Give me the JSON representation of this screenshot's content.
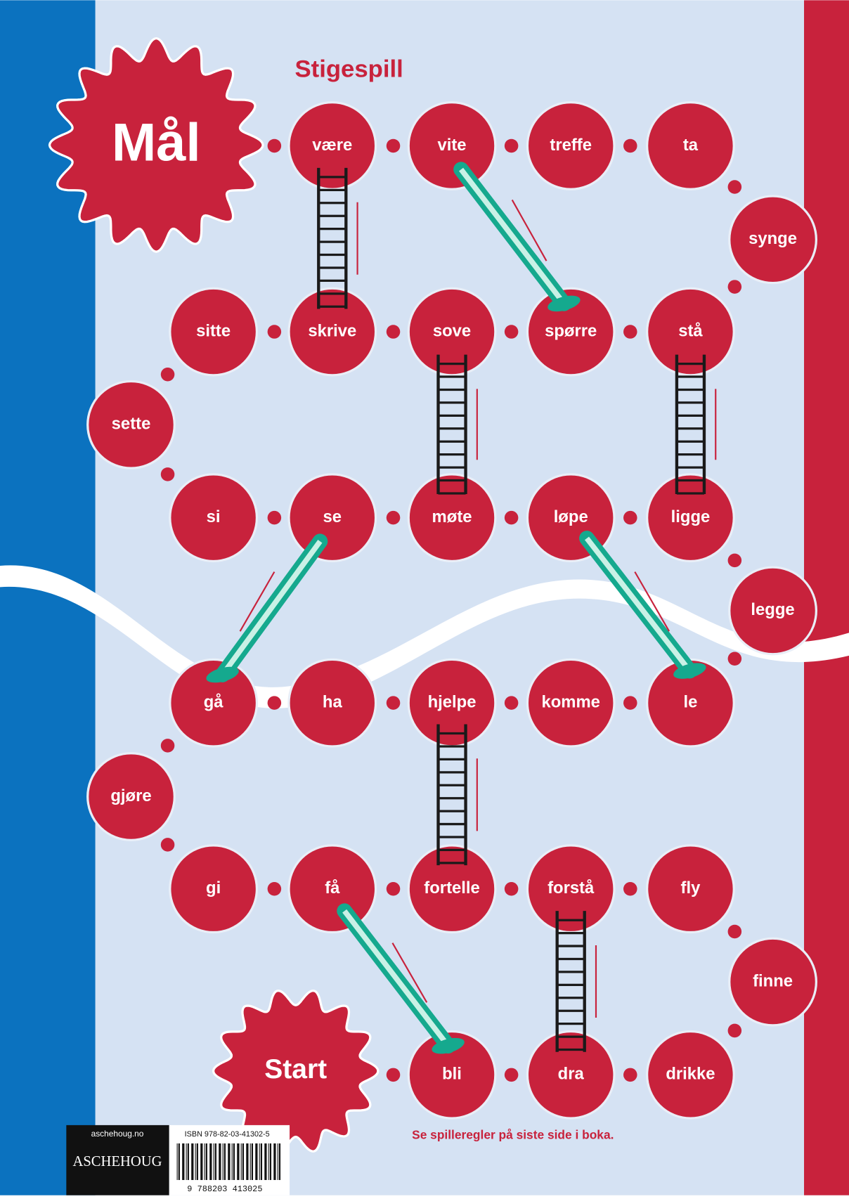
{
  "title": "Stigespill",
  "goal": "Mål",
  "start": "Start",
  "cells": [
    "være",
    "vite",
    "treffe",
    "ta",
    "synge",
    "sitte",
    "skrive",
    "sove",
    "spørre",
    "stå",
    "sette",
    "si",
    "se",
    "møte",
    "løpe",
    "ligge",
    "legge",
    "gå",
    "ha",
    "hjelpe",
    "komme",
    "le",
    "gjøre",
    "gi",
    "få",
    "fortelle",
    "forstå",
    "fly",
    "finne",
    "bli",
    "dra",
    "drikke"
  ],
  "rules_note": "Se spilleregler på siste side i boka.",
  "publisher": {
    "url": "aschehoug.no",
    "name": "ASCHEHOUG",
    "isbn": "ISBN 978-82-03-41302-5",
    "barcode": "9 788203 413025"
  }
}
